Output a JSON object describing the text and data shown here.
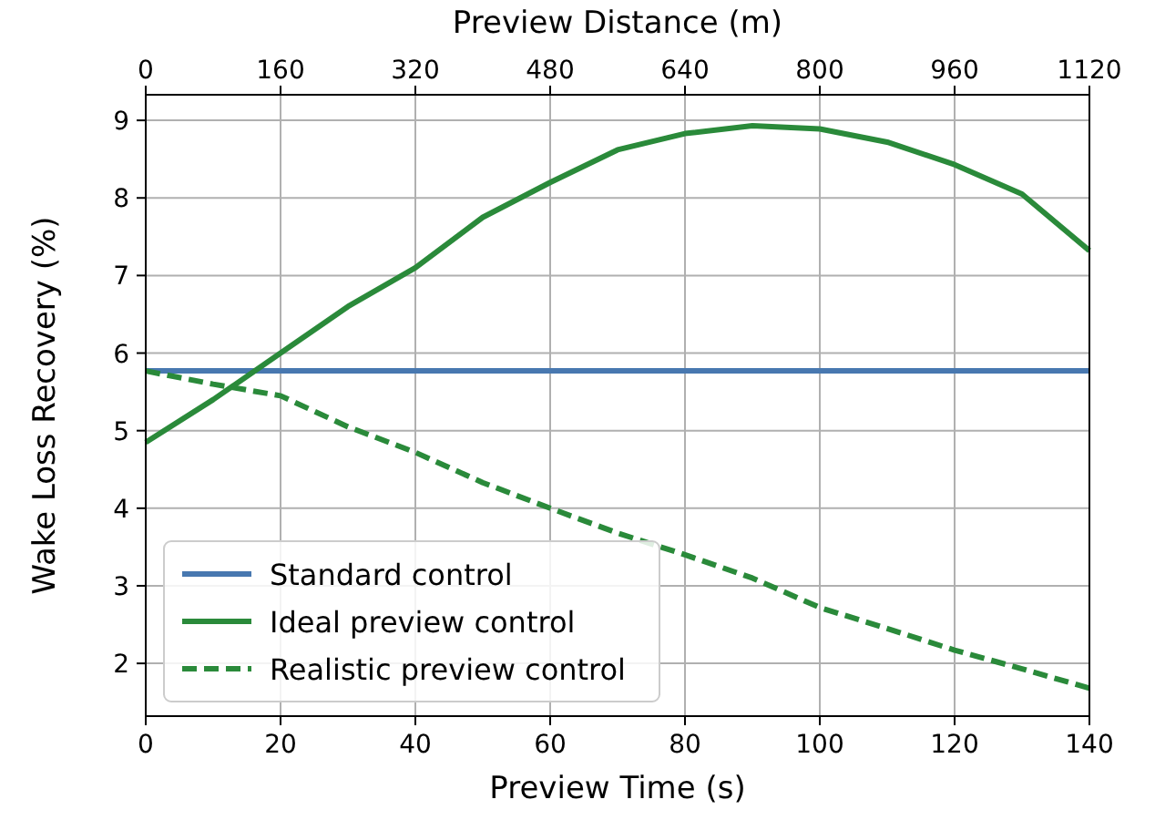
{
  "chart_data": {
    "type": "line",
    "xlabel": "Preview Time (s)",
    "ylabel": "Wake Loss Recovery (%)",
    "x2label": "Preview Distance (m)",
    "x": [
      0,
      10,
      20,
      30,
      40,
      50,
      60,
      70,
      80,
      90,
      100,
      110,
      120,
      130,
      140
    ],
    "series": [
      {
        "name": "Standard control",
        "color": "#4878b0",
        "line_style": "solid",
        "values": [
          5.77,
          5.77,
          5.77,
          5.77,
          5.77,
          5.77,
          5.77,
          5.77,
          5.77,
          5.77,
          5.77,
          5.77,
          5.77,
          5.77,
          5.77
        ]
      },
      {
        "name": "Ideal preview control",
        "color": "#2a8a3a",
        "line_style": "solid",
        "values": [
          4.85,
          5.4,
          6.0,
          6.6,
          7.1,
          7.75,
          8.2,
          8.62,
          8.83,
          8.93,
          8.89,
          8.72,
          8.43,
          8.05,
          7.32
        ]
      },
      {
        "name": "Realistic preview control",
        "color": "#2a8a3a",
        "line_style": "dashed",
        "values": [
          5.77,
          5.6,
          5.45,
          5.05,
          4.72,
          4.33,
          4.0,
          3.68,
          3.4,
          3.1,
          2.72,
          2.45,
          2.17,
          1.93,
          1.68
        ]
      }
    ],
    "xlim": [
      0,
      140
    ],
    "xticks": [
      0,
      20,
      40,
      60,
      80,
      100,
      120,
      140
    ],
    "x2lim": [
      0,
      1120
    ],
    "x2ticks": [
      0,
      160,
      320,
      480,
      640,
      800,
      960,
      1120
    ],
    "ylim": [
      1.32,
      9.33
    ],
    "yticks": [
      2,
      3,
      4,
      5,
      6,
      7,
      8,
      9
    ],
    "grid": true,
    "legend": "bottom left"
  }
}
